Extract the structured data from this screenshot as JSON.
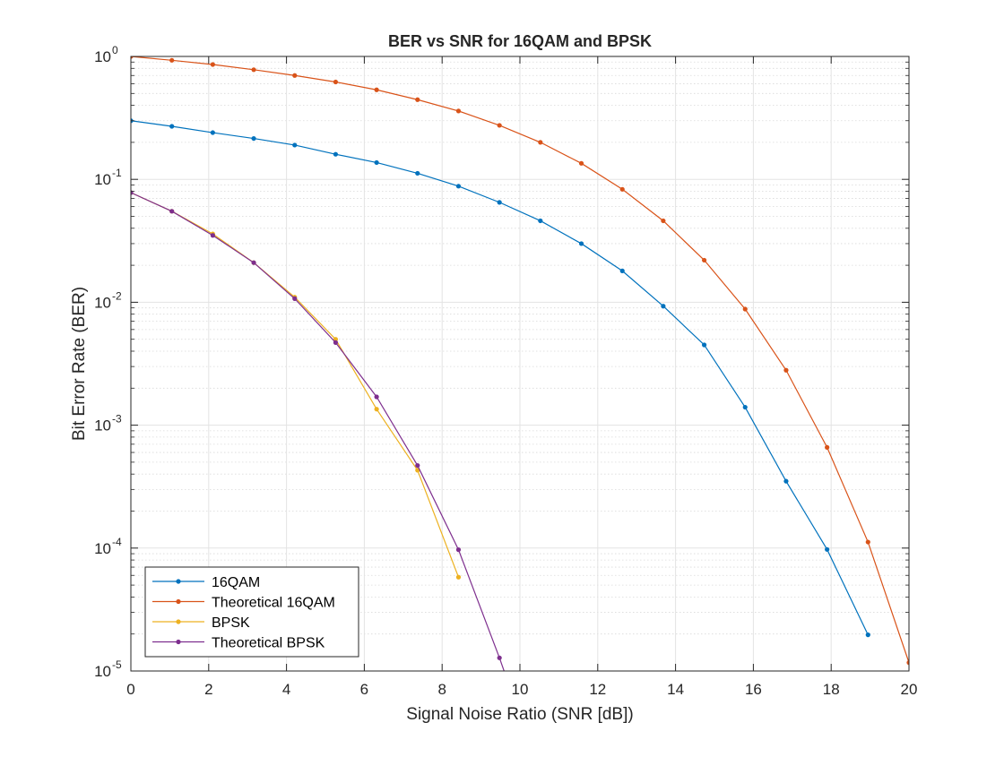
{
  "chart_data": {
    "type": "line",
    "title": "BER vs SNR for 16QAM and BPSK",
    "xlabel": "Signal Noise Ratio (SNR [dB])",
    "ylabel": "Bit Error Rate (BER)",
    "xlim": [
      0,
      20
    ],
    "ylim": [
      1e-05,
      1
    ],
    "yscale": "log",
    "grid": true,
    "minor_grid": true,
    "legend_position": "bottom-left",
    "x_ticks": [
      {
        "v": 0,
        "label": "0"
      },
      {
        "v": 2,
        "label": "2"
      },
      {
        "v": 4,
        "label": "4"
      },
      {
        "v": 6,
        "label": "6"
      },
      {
        "v": 8,
        "label": "8"
      },
      {
        "v": 10,
        "label": "10"
      },
      {
        "v": 12,
        "label": "12"
      },
      {
        "v": 14,
        "label": "14"
      },
      {
        "v": 16,
        "label": "16"
      },
      {
        "v": 18,
        "label": "18"
      },
      {
        "v": 20,
        "label": "20"
      }
    ],
    "y_ticks": [
      {
        "v": 1,
        "base": "10",
        "exp": "0"
      },
      {
        "v": 0.1,
        "base": "10",
        "exp": "-1"
      },
      {
        "v": 0.01,
        "base": "10",
        "exp": "-2"
      },
      {
        "v": 0.001,
        "base": "10",
        "exp": "-3"
      },
      {
        "v": 0.0001,
        "base": "10",
        "exp": "-4"
      },
      {
        "v": 1e-05,
        "base": "10",
        "exp": "-5"
      }
    ],
    "series": [
      {
        "name": "16QAM",
        "color": "#0072BD",
        "x": [
          0,
          1.053,
          2.105,
          3.158,
          4.211,
          5.263,
          6.316,
          7.368,
          8.421,
          9.474,
          10.526,
          11.579,
          12.632,
          13.684,
          14.737,
          15.789,
          16.842,
          17.895,
          18.947
        ],
        "y": [
          0.3,
          0.27,
          0.24,
          0.215,
          0.19,
          0.16,
          0.137,
          0.112,
          0.088,
          0.065,
          0.046,
          0.03,
          0.018,
          0.0093,
          0.0045,
          0.0014,
          0.00035,
          9.75e-05,
          1.97e-05
        ]
      },
      {
        "name": "Theoretical 16QAM",
        "color": "#D95319",
        "x": [
          0,
          1.053,
          2.105,
          3.158,
          4.211,
          5.263,
          6.316,
          7.368,
          8.421,
          9.474,
          10.526,
          11.579,
          12.632,
          13.684,
          14.737,
          15.789,
          16.842,
          17.895,
          18.947,
          20
        ],
        "y": [
          1.0,
          0.93,
          0.86,
          0.78,
          0.7,
          0.62,
          0.535,
          0.445,
          0.36,
          0.275,
          0.2,
          0.135,
          0.083,
          0.046,
          0.022,
          0.0088,
          0.0028,
          0.00066,
          0.000112,
          1.17e-05
        ]
      },
      {
        "name": "BPSK",
        "color": "#EDB120",
        "x": [
          0,
          1.053,
          2.105,
          3.158,
          4.211,
          5.263,
          6.316,
          7.368,
          8.421
        ],
        "y": [
          0.078,
          0.055,
          0.036,
          0.021,
          0.011,
          0.005,
          0.00135,
          0.00043,
          5.8e-05
        ]
      },
      {
        "name": "Theoretical BPSK",
        "color": "#7E2F8E",
        "x": [
          0,
          1.053,
          2.105,
          3.158,
          4.211,
          5.263,
          6.316,
          7.368,
          8.421,
          9.474,
          9.7
        ],
        "y": [
          0.078,
          0.055,
          0.035,
          0.021,
          0.0107,
          0.0047,
          0.0017,
          0.00047,
          9.7e-05,
          1.28e-05,
          8e-06
        ]
      }
    ]
  }
}
